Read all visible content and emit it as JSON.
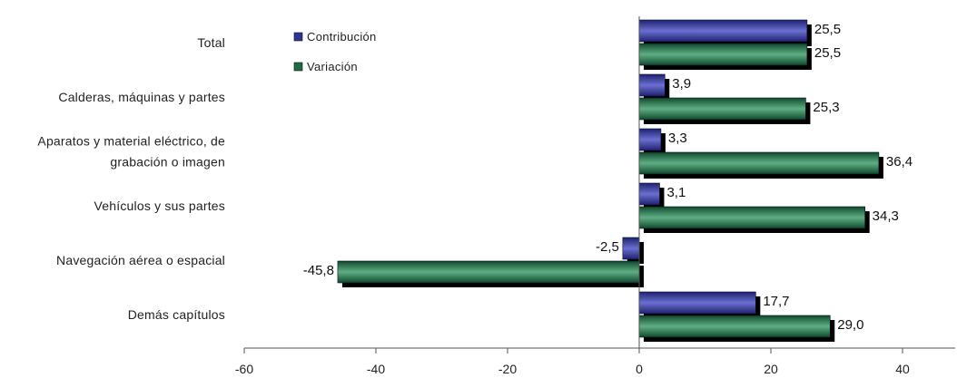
{
  "chart_data": {
    "type": "bar",
    "orientation": "horizontal",
    "categories": [
      "Total",
      "Calderas, máquinas y partes",
      "Aparatos y material eléctrico, de grabación o imagen",
      "Vehículos y sus partes",
      "Navegación aérea o espacial",
      "Demás capítulos"
    ],
    "category_lines": [
      [
        "Total"
      ],
      [
        "Calderas, máquinas y partes"
      ],
      [
        "Aparatos y material eléctrico, de",
        "grabación o imagen"
      ],
      [
        "Vehículos y sus partes"
      ],
      [
        "Navegación aérea o espacial"
      ],
      [
        "Demás capítulos"
      ]
    ],
    "series": [
      {
        "name": "Contribución",
        "color": "#2f3590",
        "values": [
          25.5,
          3.9,
          3.3,
          3.1,
          -2.5,
          17.7
        ],
        "labels": [
          "25,5",
          "3,9",
          "3,3",
          "3,1",
          "-2,5",
          "17,7"
        ]
      },
      {
        "name": "Variación",
        "color": "#1f6b45",
        "values": [
          25.5,
          25.3,
          36.4,
          34.3,
          -45.8,
          29.0
        ],
        "labels": [
          "25,5",
          "25,3",
          "36,4",
          "34,3",
          "-45,8",
          "29,0"
        ]
      }
    ],
    "xlim": [
      -60,
      48
    ],
    "x_ticks": [
      -60,
      -40,
      -20,
      0,
      20,
      40
    ],
    "x_tick_labels": [
      "-60",
      "-40",
      "-20",
      "0",
      "20",
      "40"
    ],
    "grid": false,
    "legend_position": "top-left"
  }
}
